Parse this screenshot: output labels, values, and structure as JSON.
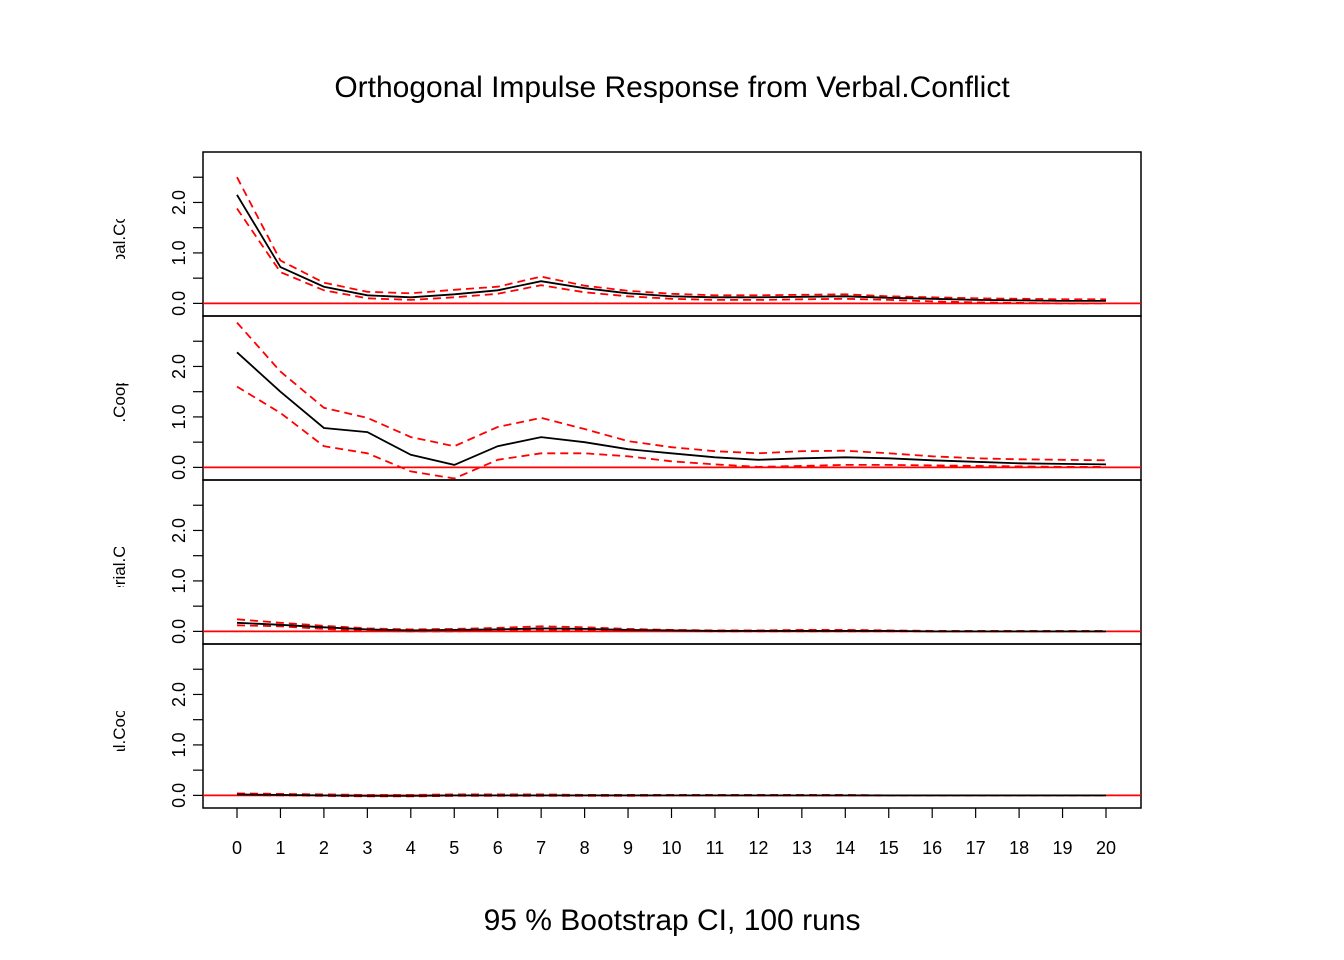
{
  "chart_data": {
    "type": "line",
    "title": "Orthogonal Impulse Response from Verbal.Conflict",
    "xlabel": "95 % Bootstrap CI,  100 runs",
    "x": [
      0,
      1,
      2,
      3,
      4,
      5,
      6,
      7,
      8,
      9,
      10,
      11,
      12,
      13,
      14,
      15,
      16,
      17,
      18,
      19,
      20
    ],
    "x_tick_labels": [
      "0",
      "1",
      "2",
      "3",
      "4",
      "5",
      "6",
      "7",
      "8",
      "9",
      "10",
      "11",
      "12",
      "13",
      "14",
      "15",
      "16",
      "17",
      "18",
      "19",
      "20"
    ],
    "ylim": [
      -0.25,
      3.0
    ],
    "y_tick_labels": [
      "0.0",
      "1.0",
      "2.0"
    ],
    "grid": false,
    "zero_line_color": "#ff0000",
    "response_color": "#000000",
    "ci_color": "#ff0000",
    "panels": [
      {
        "name": "Verbal.Conflict",
        "response": [
          2.15,
          0.72,
          0.33,
          0.16,
          0.12,
          0.18,
          0.26,
          0.44,
          0.3,
          0.2,
          0.14,
          0.12,
          0.12,
          0.13,
          0.14,
          0.11,
          0.09,
          0.07,
          0.06,
          0.05,
          0.05
        ],
        "lower": [
          1.88,
          0.62,
          0.26,
          0.1,
          0.07,
          0.12,
          0.19,
          0.36,
          0.22,
          0.14,
          0.09,
          0.07,
          0.07,
          0.08,
          0.09,
          0.07,
          0.04,
          0.02,
          0.01,
          0.0,
          0.0
        ],
        "upper": [
          2.5,
          0.85,
          0.41,
          0.23,
          0.2,
          0.27,
          0.33,
          0.53,
          0.35,
          0.25,
          0.19,
          0.16,
          0.16,
          0.17,
          0.18,
          0.14,
          0.12,
          0.1,
          0.09,
          0.08,
          0.08
        ]
      },
      {
        "name": "Verbal.Cooperation",
        "response": [
          2.28,
          1.5,
          0.78,
          0.7,
          0.25,
          0.05,
          0.42,
          0.6,
          0.5,
          0.36,
          0.28,
          0.2,
          0.15,
          0.18,
          0.2,
          0.18,
          0.14,
          0.11,
          0.08,
          0.07,
          0.06
        ],
        "lower": [
          1.6,
          1.08,
          0.42,
          0.28,
          -0.08,
          -0.22,
          0.15,
          0.28,
          0.28,
          0.22,
          0.12,
          0.06,
          0.01,
          0.03,
          0.05,
          0.05,
          0.04,
          0.03,
          0.02,
          0.01,
          0.01
        ],
        "upper": [
          2.87,
          1.9,
          1.18,
          0.98,
          0.6,
          0.42,
          0.8,
          0.98,
          0.76,
          0.52,
          0.4,
          0.32,
          0.28,
          0.32,
          0.33,
          0.28,
          0.22,
          0.18,
          0.16,
          0.15,
          0.14
        ]
      },
      {
        "name": "Material.Conflict",
        "response": [
          0.17,
          0.13,
          0.08,
          0.04,
          0.02,
          0.03,
          0.04,
          0.06,
          0.05,
          0.03,
          0.02,
          0.01,
          0.01,
          0.01,
          0.01,
          0.01,
          0.0,
          0.0,
          0.0,
          0.0,
          0.0
        ],
        "lower": [
          0.12,
          0.1,
          0.05,
          0.01,
          0.0,
          0.0,
          0.02,
          0.03,
          0.03,
          0.01,
          0.01,
          0.0,
          0.0,
          0.0,
          0.0,
          0.0,
          0.0,
          0.0,
          0.0,
          0.0,
          0.0
        ],
        "upper": [
          0.24,
          0.17,
          0.11,
          0.06,
          0.04,
          0.05,
          0.07,
          0.1,
          0.08,
          0.05,
          0.03,
          0.02,
          0.02,
          0.03,
          0.03,
          0.02,
          0.01,
          0.01,
          0.01,
          0.01,
          0.01
        ]
      },
      {
        "name": "Material.Cooperation",
        "response": [
          0.02,
          0.01,
          0.0,
          -0.01,
          -0.01,
          0.0,
          0.0,
          0.0,
          0.0,
          0.0,
          0.0,
          0.0,
          0.0,
          0.0,
          0.0,
          0.0,
          0.0,
          0.0,
          0.0,
          0.0,
          0.0
        ],
        "lower": [
          0.01,
          0.0,
          -0.01,
          -0.02,
          -0.02,
          -0.01,
          -0.01,
          -0.01,
          -0.01,
          -0.01,
          0.0,
          0.0,
          0.0,
          0.0,
          0.0,
          0.0,
          0.0,
          0.0,
          0.0,
          0.0,
          0.0
        ],
        "upper": [
          0.04,
          0.03,
          0.02,
          0.01,
          0.01,
          0.02,
          0.02,
          0.02,
          0.01,
          0.01,
          0.01,
          0.01,
          0.01,
          0.01,
          0.01,
          0.0,
          0.0,
          0.0,
          0.0,
          0.0,
          0.0
        ]
      }
    ]
  }
}
